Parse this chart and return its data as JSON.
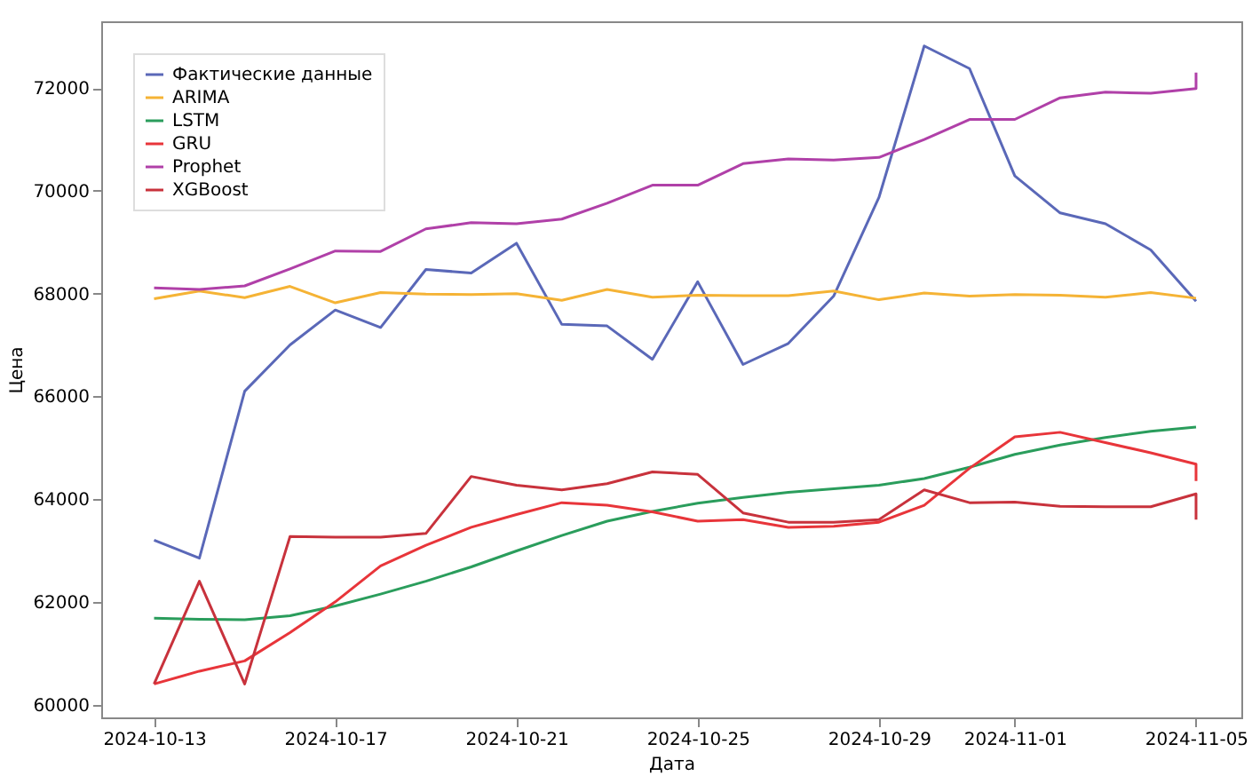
{
  "chart_data": {
    "type": "line",
    "xlabel": "Дата",
    "ylabel": "Цена",
    "x": [
      "2024-10-13",
      "2024-10-14",
      "2024-10-15",
      "2024-10-16",
      "2024-10-17",
      "2024-10-18",
      "2024-10-19",
      "2024-10-20",
      "2024-10-21",
      "2024-10-22",
      "2024-10-23",
      "2024-10-24",
      "2024-10-25",
      "2024-10-26",
      "2024-10-27",
      "2024-10-28",
      "2024-10-29",
      "2024-10-30",
      "2024-10-31",
      "2024-11-01",
      "2024-11-02",
      "2024-11-03",
      "2024-11-04",
      "2024-11-05"
    ],
    "series": [
      {
        "name": "Фактические данные",
        "color": "#5a68b8",
        "values": [
          63200,
          62850,
          66100,
          67000,
          67680,
          67340,
          68470,
          68400,
          68980,
          67400,
          67370,
          66720,
          68230,
          66620,
          67030,
          67950,
          69870,
          72820,
          72380,
          70290,
          69570,
          69360,
          68850,
          67850
        ]
      },
      {
        "name": "ARIMA",
        "color": "#f5b335",
        "values": [
          67900,
          68050,
          67920,
          68140,
          67820,
          68020,
          67990,
          67980,
          68000,
          67870,
          68080,
          67930,
          67970,
          67960,
          67960,
          68050,
          67880,
          68010,
          67950,
          67980,
          67970,
          67930,
          68020,
          67910
        ]
      },
      {
        "name": "LSTM",
        "color": "#2a9d5c",
        "values": [
          61680,
          61660,
          61650,
          61730,
          61920,
          62150,
          62400,
          62680,
          62990,
          63290,
          63570,
          63760,
          63920,
          64030,
          64130,
          64200,
          64270,
          64400,
          64620,
          64870,
          65050,
          65200,
          65320,
          65400
        ]
      },
      {
        "name": "GRU",
        "color": "#e8353a",
        "x": [
          "2024-10-13",
          "2024-10-14",
          "2024-10-15",
          "2024-10-16",
          "2024-10-17",
          "2024-10-18",
          "2024-10-19",
          "2024-10-20",
          "2024-10-21",
          "2024-10-22",
          "2024-10-23",
          "2024-10-24",
          "2024-10-25",
          "2024-10-26",
          "2024-10-27",
          "2024-10-28",
          "2024-10-29",
          "2024-10-30",
          "2024-10-31",
          "2024-11-01",
          "2024-11-02",
          "2024-11-03",
          "2024-11-04",
          "2024-11-05",
          "2024-11-05"
        ],
        "values": [
          60400,
          60650,
          60850,
          61400,
          62000,
          62700,
          63100,
          63450,
          63700,
          63930,
          63880,
          63750,
          63570,
          63600,
          63450,
          63470,
          63550,
          63880,
          64600,
          65210,
          65300,
          65100,
          64900,
          64680,
          64350
        ]
      },
      {
        "name": "Prophet",
        "color": "#b040a8",
        "x": [
          "2024-10-13",
          "2024-10-14",
          "2024-10-15",
          "2024-10-16",
          "2024-10-17",
          "2024-10-18",
          "2024-10-19",
          "2024-10-20",
          "2024-10-21",
          "2024-10-22",
          "2024-10-23",
          "2024-10-24",
          "2024-10-25",
          "2024-10-26",
          "2024-10-27",
          "2024-10-28",
          "2024-10-29",
          "2024-10-30",
          "2024-10-31",
          "2024-11-01",
          "2024-11-02",
          "2024-11-03",
          "2024-11-04",
          "2024-11-05",
          "2024-11-05"
        ],
        "values": [
          68110,
          68080,
          68150,
          68480,
          68830,
          68820,
          69260,
          69380,
          69360,
          69450,
          69760,
          70110,
          70110,
          70530,
          70620,
          70600,
          70650,
          71000,
          71390,
          71390,
          71810,
          71920,
          71900,
          71990,
          72300
        ]
      },
      {
        "name": "XGBoost",
        "color": "#c8323c",
        "x": [
          "2024-10-13",
          "2024-10-14",
          "2024-10-15",
          "2024-10-16",
          "2024-10-17",
          "2024-10-18",
          "2024-10-19",
          "2024-10-20",
          "2024-10-21",
          "2024-10-22",
          "2024-10-23",
          "2024-10-24",
          "2024-10-25",
          "2024-10-26",
          "2024-10-27",
          "2024-10-28",
          "2024-10-29",
          "2024-10-30",
          "2024-10-31",
          "2024-11-01",
          "2024-11-02",
          "2024-11-03",
          "2024-11-04",
          "2024-11-05",
          "2024-11-05"
        ],
        "values": [
          60400,
          62400,
          60400,
          63270,
          63260,
          63260,
          63330,
          64440,
          64270,
          64180,
          64300,
          64530,
          64480,
          63730,
          63550,
          63550,
          63600,
          64180,
          63930,
          63940,
          63860,
          63850,
          63850,
          64100,
          63600
        ]
      }
    ],
    "xlim": [
      "2024-10-11T20:00",
      "2024-11-06"
    ],
    "xticks": [
      "2024-10-13",
      "2024-10-17",
      "2024-10-21",
      "2024-10-25",
      "2024-10-29",
      "2024-11-01",
      "2024-11-05"
    ],
    "ylim": [
      59750,
      73300
    ],
    "yticks": [
      60000,
      62000,
      64000,
      66000,
      68000,
      70000,
      72000
    ],
    "legend": "top left",
    "grid": false
  }
}
